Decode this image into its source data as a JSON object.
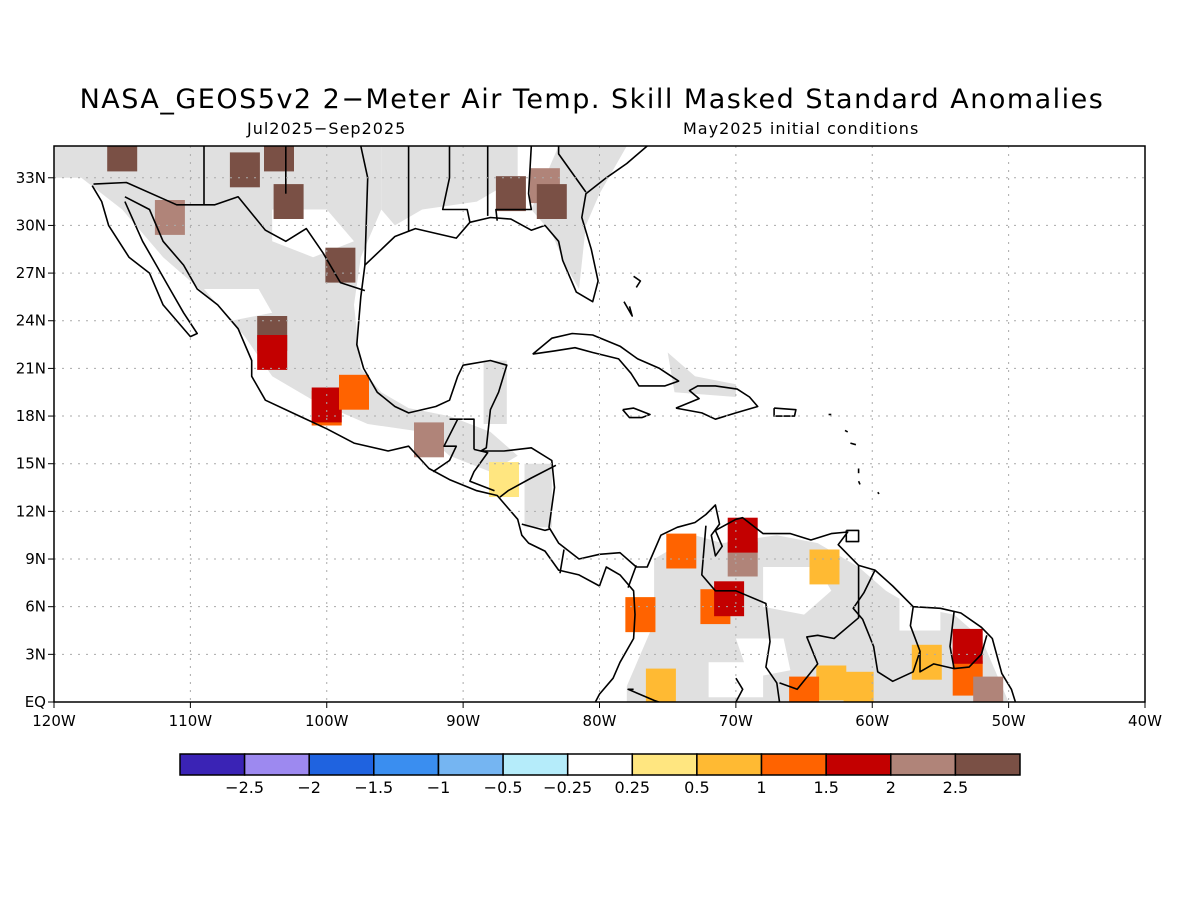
{
  "title": "NASA_GEOS5v2 2−Meter Air Temp. Skill Masked Standard Anomalies",
  "subtitle_left": "Jul2025−Sep2025",
  "subtitle_right": "May2025 initial conditions",
  "map": {
    "lon_range": [
      -120,
      -40
    ],
    "lat_range": [
      0,
      35
    ],
    "lon_ticks": [
      {
        "value": -120,
        "label": "120W"
      },
      {
        "value": -110,
        "label": "110W"
      },
      {
        "value": -100,
        "label": "100W"
      },
      {
        "value": -90,
        "label": "90W"
      },
      {
        "value": -80,
        "label": "80W"
      },
      {
        "value": -70,
        "label": "70W"
      },
      {
        "value": -60,
        "label": "60W"
      },
      {
        "value": -50,
        "label": "50W"
      },
      {
        "value": -40,
        "label": "40W"
      }
    ],
    "lat_ticks": [
      {
        "value": 0,
        "label": "EQ"
      },
      {
        "value": 3,
        "label": "3N"
      },
      {
        "value": 6,
        "label": "6N"
      },
      {
        "value": 9,
        "label": "9N"
      },
      {
        "value": 12,
        "label": "12N"
      },
      {
        "value": 15,
        "label": "15N"
      },
      {
        "value": 18,
        "label": "18N"
      },
      {
        "value": 21,
        "label": "21N"
      },
      {
        "value": 24,
        "label": "24N"
      },
      {
        "value": 27,
        "label": "27N"
      },
      {
        "value": 30,
        "label": "30N"
      },
      {
        "value": 33,
        "label": "33N"
      }
    ],
    "grid": true,
    "mask_color": "#e0e0e0",
    "anomaly_cells": [
      {
        "lon": -111.5,
        "lat": 30.5,
        "level": "2"
      },
      {
        "lon": -99,
        "lat": 27.5,
        "level": "2.5"
      },
      {
        "lon": -102.8,
        "lat": 31.5,
        "level": "2.5"
      },
      {
        "lon": -106,
        "lat": 33.5,
        "level": "2.5"
      },
      {
        "lon": -103.5,
        "lat": 34.5,
        "level": "2.5"
      },
      {
        "lon": -115,
        "lat": 34.5,
        "level": "2.5"
      },
      {
        "lon": -104,
        "lat": 23.2,
        "level": "2.5"
      },
      {
        "lon": -104,
        "lat": 22,
        "level": "1.5"
      },
      {
        "lon": -100,
        "lat": 18.5,
        "level": "1"
      },
      {
        "lon": -100,
        "lat": 18.7,
        "level": "1.5"
      },
      {
        "lon": -98,
        "lat": 19.5,
        "level": "1"
      },
      {
        "lon": -92.5,
        "lat": 16.5,
        "level": "2"
      },
      {
        "lon": -87,
        "lat": 14.0,
        "level": "0.25"
      },
      {
        "lon": -74,
        "lat": 9.5,
        "level": "1"
      },
      {
        "lon": -69.5,
        "lat": 9.0,
        "level": "2"
      },
      {
        "lon": -69.5,
        "lat": 10.5,
        "level": "1.5"
      },
      {
        "lon": -71.5,
        "lat": 6.0,
        "level": "1"
      },
      {
        "lon": -70.5,
        "lat": 6.5,
        "level": "1.5"
      },
      {
        "lon": -63.5,
        "lat": 8.5,
        "level": "0.5"
      },
      {
        "lon": -77,
        "lat": 5.5,
        "level": "0.5"
      },
      {
        "lon": -77,
        "lat": 5.5,
        "level": "1"
      },
      {
        "lon": -75.5,
        "lat": 1.0,
        "level": "0.5"
      },
      {
        "lon": -63,
        "lat": 1.2,
        "level": "0.5"
      },
      {
        "lon": -61,
        "lat": 0.8,
        "level": "0.5"
      },
      {
        "lon": -65,
        "lat": 0.5,
        "level": "1"
      },
      {
        "lon": -56,
        "lat": 2.5,
        "level": "0.5"
      },
      {
        "lon": -53,
        "lat": 1.5,
        "level": "1"
      },
      {
        "lon": -53,
        "lat": 3.5,
        "level": "1.5"
      },
      {
        "lon": -51.5,
        "lat": 0.5,
        "level": "2"
      },
      {
        "lon": -84,
        "lat": 32.5,
        "level": "2"
      },
      {
        "lon": -83.5,
        "lat": 31.5,
        "level": "2.5"
      },
      {
        "lon": -86.5,
        "lat": 32.0,
        "level": "2.5"
      }
    ]
  },
  "colorbar": {
    "bins": [
      {
        "color": "#3a23b5"
      },
      {
        "color": "#9d89f0"
      },
      {
        "color": "#1f63e0"
      },
      {
        "color": "#3a8ef0"
      },
      {
        "color": "#75b5f2"
      },
      {
        "color": "#b5ecfa"
      },
      {
        "color": "#ffffff"
      },
      {
        "color": "#ffe680"
      },
      {
        "color": "#ffba33"
      },
      {
        "color": "#ff6300"
      },
      {
        "color": "#c30000"
      },
      {
        "color": "#b08479"
      },
      {
        "color": "#7a5045"
      }
    ],
    "labels": [
      "−2.5",
      "−2",
      "−1.5",
      "−1",
      "−0.5",
      "−0.25",
      "0.25",
      "0.5",
      "1",
      "1.5",
      "2",
      "2.5"
    ]
  }
}
